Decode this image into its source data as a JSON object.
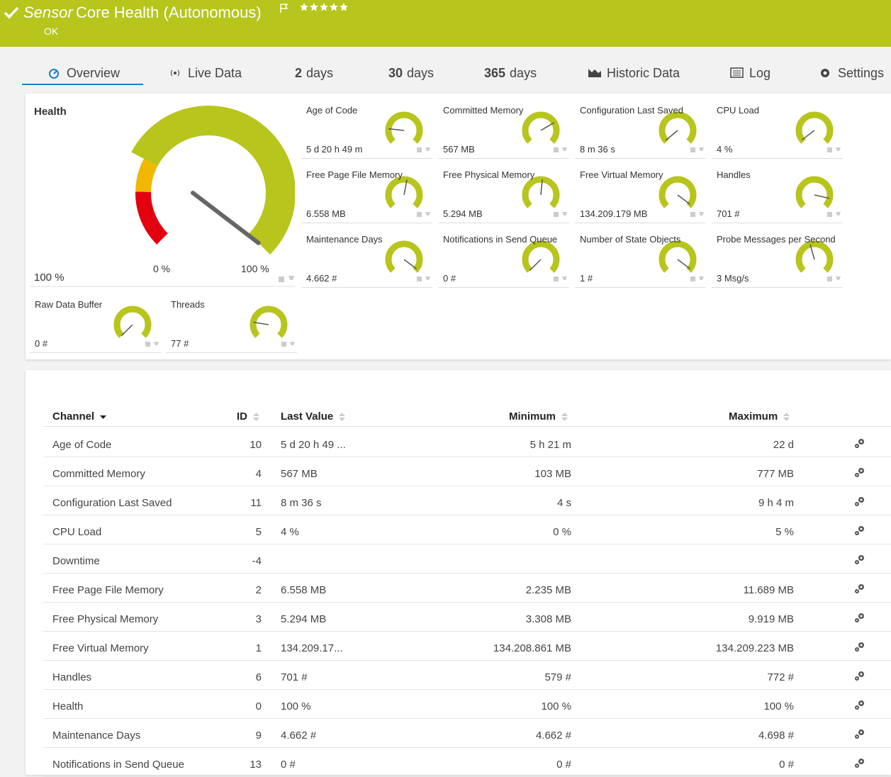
{
  "header": {
    "prefix": "Sensor",
    "title": "Core Health (Autonomous)",
    "status": "OK"
  },
  "tabs": [
    {
      "label": "Overview"
    },
    {
      "label": "Live Data"
    },
    {
      "count": "2",
      "label": "days"
    },
    {
      "count": "30",
      "label": "days"
    },
    {
      "count": "365",
      "label": "days"
    },
    {
      "label": "Historic Data"
    },
    {
      "label": "Log"
    },
    {
      "label": "Settings"
    }
  ],
  "health_gauge": {
    "title": "Health",
    "value": "100 %",
    "min": "0 %",
    "max": "100 %",
    "needle_percent": 100
  },
  "gauges": [
    {
      "title": "Age of Code",
      "value": "5 d 20 h 49 m",
      "needle_percent": 19
    },
    {
      "title": "Committed Memory",
      "value": "567 MB",
      "needle_percent": 72
    },
    {
      "title": "Configuration Last Saved",
      "value": "8 m 36 s",
      "needle_percent": 2
    },
    {
      "title": "CPU Load",
      "value": "4 %",
      "needle_percent": 3
    },
    {
      "title": "Free Page File Memory",
      "value": "6.558 MB",
      "needle_percent": 54
    },
    {
      "title": "Free Physical Memory",
      "value": "5.294 MB",
      "needle_percent": 52
    },
    {
      "title": "Free Virtual Memory",
      "value": "134.209.179 MB",
      "needle_percent": 97
    },
    {
      "title": "Handles",
      "value": "701 #",
      "needle_percent": 88
    },
    {
      "title": "Maintenance Days",
      "value": "4.662 #",
      "needle_percent": 97
    },
    {
      "title": "Notifications in Send Queue",
      "value": "0 #",
      "needle_percent": 0
    },
    {
      "title": "Number of State Objects",
      "value": "1 #",
      "needle_percent": 97
    },
    {
      "title": "Probe Messages per Second",
      "value": "3 Msg/s",
      "needle_percent": 44
    },
    {
      "title": "Raw Data Buffer",
      "value": "0 #",
      "needle_percent": 0
    },
    {
      "title": "Threads",
      "value": "77 #",
      "needle_percent": 20
    }
  ],
  "table": {
    "columns": [
      "Channel",
      "ID",
      "Last Value",
      "Minimum",
      "Maximum"
    ],
    "rows": [
      [
        "Age of Code",
        "10",
        "5 d 20 h 49 ...",
        "5 h 21 m",
        "22 d"
      ],
      [
        "Committed Memory",
        "4",
        "567 MB",
        "103 MB",
        "777 MB"
      ],
      [
        "Configuration Last Saved",
        "11",
        "8 m 36 s",
        "4 s",
        "9 h 4 m"
      ],
      [
        "CPU Load",
        "5",
        "4 %",
        "0 %",
        "5 %"
      ],
      [
        "Downtime",
        "-4",
        null,
        null,
        null
      ],
      [
        "Free Page File Memory",
        "2",
        "6.558 MB",
        "2.235 MB",
        "11.689 MB"
      ],
      [
        "Free Physical Memory",
        "3",
        "5.294 MB",
        "3.308 MB",
        "9.919 MB"
      ],
      [
        "Free Virtual Memory",
        "1",
        "134.209.17...",
        "134.208.861 MB",
        "134.209.223 MB"
      ],
      [
        "Handles",
        "6",
        "701 #",
        "579 #",
        "772 #"
      ],
      [
        "Health",
        "0",
        "100 %",
        "100 %",
        "100 %"
      ],
      [
        "Maintenance Days",
        "9",
        "4.662 #",
        "4.662 #",
        "4.698 #"
      ],
      [
        "Notifications in Send Queue",
        "13",
        "0 #",
        "0 #",
        "0 #"
      ]
    ]
  }
}
